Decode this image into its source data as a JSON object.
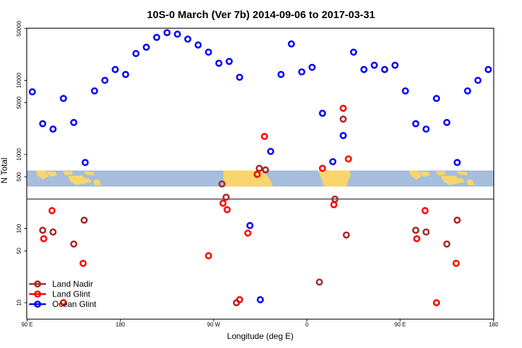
{
  "chart_data": {
    "type": "scatter",
    "title": "10S-0 March (Ver 7b)   2014-09-06 to 2017-03-31",
    "xlabel": "Longitude (deg E)",
    "ylabel": "N Total",
    "y_scale": "log",
    "x_ticks": [
      {
        "value": 90,
        "label": "90 E"
      },
      {
        "value": 180,
        "label": "180"
      },
      {
        "value": 270,
        "label": "90 W"
      },
      {
        "value": 360,
        "label": "0"
      },
      {
        "value": 450,
        "label": "90 E"
      },
      {
        "value": 540,
        "label": "180"
      }
    ],
    "y_ticks": [
      {
        "value": 10,
        "label": "10"
      },
      {
        "value": 50,
        "label": "50"
      },
      {
        "value": 100,
        "label": "100"
      },
      {
        "value": 500,
        "label": "500"
      },
      {
        "value": 1000,
        "label": "1000"
      },
      {
        "value": 5000,
        "label": "5000"
      },
      {
        "value": 10000,
        "label": "10000"
      },
      {
        "value": 50000,
        "label": "50000"
      }
    ],
    "legend": {
      "position": "bottom-left"
    },
    "series": [
      {
        "name": "Land Nadir",
        "color": "#a52a2a",
        "points": [
          {
            "x": 105,
            "y": 95
          },
          {
            "x": 115,
            "y": 90
          },
          {
            "x": 135,
            "y": 62
          },
          {
            "x": 145,
            "y": 130
          },
          {
            "x": 278,
            "y": 400
          },
          {
            "x": 282,
            "y": 265
          },
          {
            "x": 292,
            "y": 10
          },
          {
            "x": 314,
            "y": 650
          },
          {
            "x": 320,
            "y": 620
          },
          {
            "x": 372,
            "y": 19
          },
          {
            "x": 387,
            "y": 250
          },
          {
            "x": 395,
            "y": 3000
          },
          {
            "x": 398,
            "y": 82
          },
          {
            "x": 465,
            "y": 95
          },
          {
            "x": 475,
            "y": 90
          },
          {
            "x": 495,
            "y": 62
          },
          {
            "x": 505,
            "y": 130
          }
        ]
      },
      {
        "name": "Land Glint",
        "color": "#ff0000",
        "points": [
          {
            "x": 106,
            "y": 73
          },
          {
            "x": 114,
            "y": 175
          },
          {
            "x": 125,
            "y": 10
          },
          {
            "x": 144,
            "y": 34
          },
          {
            "x": 265,
            "y": 43
          },
          {
            "x": 279,
            "y": 220
          },
          {
            "x": 283,
            "y": 180
          },
          {
            "x": 295,
            "y": 11
          },
          {
            "x": 303,
            "y": 87
          },
          {
            "x": 312,
            "y": 540
          },
          {
            "x": 319,
            "y": 1750
          },
          {
            "x": 375,
            "y": 650
          },
          {
            "x": 386,
            "y": 210
          },
          {
            "x": 395,
            "y": 4200
          },
          {
            "x": 400,
            "y": 870
          },
          {
            "x": 466,
            "y": 73
          },
          {
            "x": 474,
            "y": 175
          },
          {
            "x": 485,
            "y": 10
          },
          {
            "x": 504,
            "y": 34
          }
        ]
      },
      {
        "name": "Ocean Glint",
        "color": "#0000ff",
        "points": [
          {
            "x": 95,
            "y": 7000
          },
          {
            "x": 105,
            "y": 2600
          },
          {
            "x": 115,
            "y": 2200
          },
          {
            "x": 125,
            "y": 5700
          },
          {
            "x": 135,
            "y": 2700
          },
          {
            "x": 146,
            "y": 780
          },
          {
            "x": 155,
            "y": 7200
          },
          {
            "x": 165,
            "y": 10000
          },
          {
            "x": 175,
            "y": 14000
          },
          {
            "x": 185,
            "y": 12000
          },
          {
            "x": 195,
            "y": 23000
          },
          {
            "x": 205,
            "y": 28000
          },
          {
            "x": 215,
            "y": 38000
          },
          {
            "x": 225,
            "y": 44000
          },
          {
            "x": 235,
            "y": 42000
          },
          {
            "x": 245,
            "y": 36000
          },
          {
            "x": 255,
            "y": 30000
          },
          {
            "x": 265,
            "y": 24000
          },
          {
            "x": 275,
            "y": 17000
          },
          {
            "x": 285,
            "y": 18000
          },
          {
            "x": 295,
            "y": 11000
          },
          {
            "x": 305,
            "y": 110
          },
          {
            "x": 315,
            "y": 11
          },
          {
            "x": 325,
            "y": 1100
          },
          {
            "x": 335,
            "y": 12000
          },
          {
            "x": 345,
            "y": 31000
          },
          {
            "x": 355,
            "y": 13000
          },
          {
            "x": 365,
            "y": 15000
          },
          {
            "x": 375,
            "y": 3600
          },
          {
            "x": 385,
            "y": 800
          },
          {
            "x": 395,
            "y": 1800
          },
          {
            "x": 405,
            "y": 24000
          },
          {
            "x": 415,
            "y": 14000
          },
          {
            "x": 425,
            "y": 16000
          },
          {
            "x": 435,
            "y": 14000
          },
          {
            "x": 445,
            "y": 16000
          },
          {
            "x": 455,
            "y": 7200
          },
          {
            "x": 465,
            "y": 2600
          },
          {
            "x": 475,
            "y": 2200
          },
          {
            "x": 485,
            "y": 5700
          },
          {
            "x": 495,
            "y": 2700
          },
          {
            "x": 505,
            "y": 780
          },
          {
            "x": 515,
            "y": 7200
          },
          {
            "x": 525,
            "y": 10000
          },
          {
            "x": 535,
            "y": 14000
          }
        ]
      }
    ],
    "colors": {
      "ocean": "#a6bddb",
      "land": "#f9d56e",
      "background": "#ffffff"
    }
  }
}
